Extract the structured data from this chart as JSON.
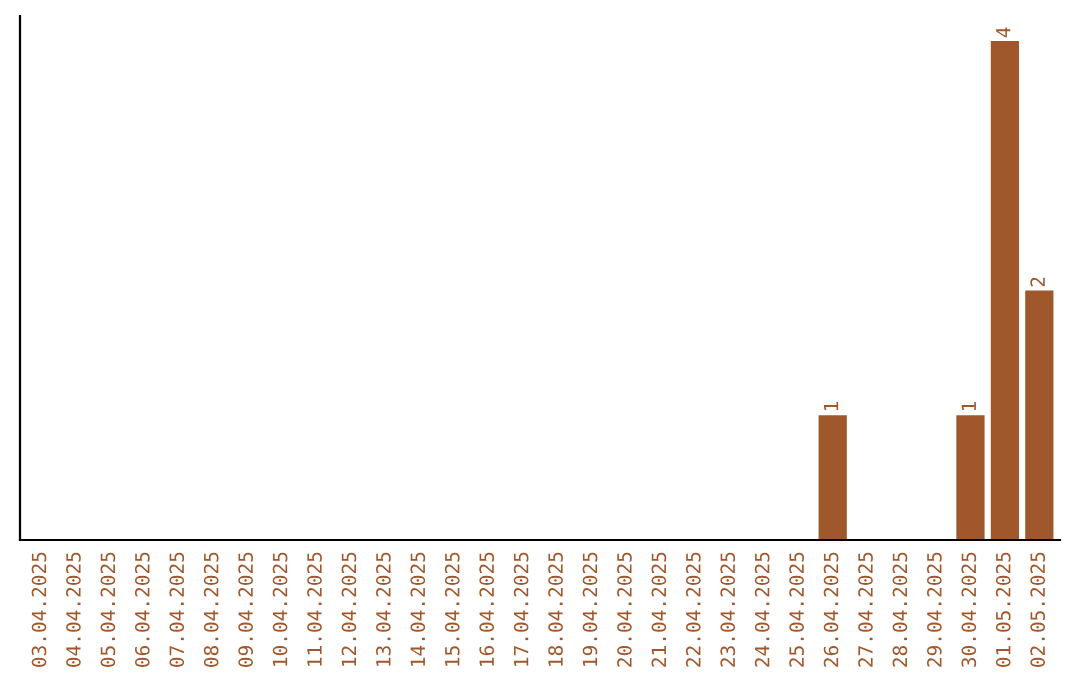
{
  "chart_data": {
    "type": "bar",
    "categories": [
      "03.04.2025",
      "04.04.2025",
      "05.04.2025",
      "06.04.2025",
      "07.04.2025",
      "08.04.2025",
      "09.04.2025",
      "10.04.2025",
      "11.04.2025",
      "12.04.2025",
      "13.04.2025",
      "14.04.2025",
      "15.04.2025",
      "16.04.2025",
      "17.04.2025",
      "18.04.2025",
      "19.04.2025",
      "20.04.2025",
      "21.04.2025",
      "22.04.2025",
      "23.04.2025",
      "24.04.2025",
      "25.04.2025",
      "26.04.2025",
      "27.04.2025",
      "28.04.2025",
      "29.04.2025",
      "30.04.2025",
      "01.05.2025",
      "02.05.2025"
    ],
    "values": [
      null,
      null,
      null,
      null,
      null,
      null,
      null,
      null,
      null,
      null,
      null,
      null,
      null,
      null,
      null,
      null,
      null,
      null,
      null,
      null,
      null,
      null,
      null,
      1,
      null,
      null,
      null,
      1,
      4,
      2
    ],
    "ylim": [
      0,
      4.2
    ],
    "value_labels": [
      null,
      null,
      null,
      null,
      null,
      null,
      null,
      null,
      null,
      null,
      null,
      null,
      null,
      null,
      null,
      null,
      null,
      null,
      null,
      null,
      null,
      null,
      null,
      "1",
      null,
      null,
      null,
      "1",
      "4",
      "2"
    ],
    "color": "#a0572b",
    "tick_labels": "x",
    "grid": false,
    "legend": false
  }
}
